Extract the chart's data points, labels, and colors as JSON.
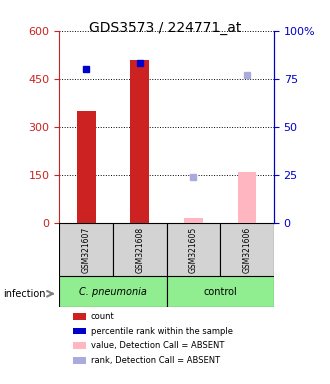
{
  "title": "GDS3573 / 224771_at",
  "samples": [
    "GSM321607",
    "GSM321608",
    "GSM321605",
    "GSM321606"
  ],
  "groups": [
    "C. pneumonia",
    "C. pneumonia",
    "control",
    "control"
  ],
  "group_labels": [
    "C. pneumonia",
    "control"
  ],
  "group_colors": [
    "#90ee90",
    "#90ee90"
  ],
  "bar_colors_present": [
    "#cc2222",
    "#cc2222"
  ],
  "bar_colors_absent": [
    "#ffb6c1",
    "#ffb6c1"
  ],
  "count_values": [
    350,
    510,
    15,
    160
  ],
  "count_absent": [
    false,
    false,
    true,
    true
  ],
  "percentile_values": [
    80,
    83,
    24,
    77
  ],
  "percentile_absent": [
    false,
    false,
    true,
    true
  ],
  "ylim_left": [
    0,
    600
  ],
  "ylim_right": [
    0,
    100
  ],
  "yticks_left": [
    0,
    150,
    300,
    450,
    600
  ],
  "yticks_right": [
    0,
    25,
    50,
    75,
    100
  ],
  "ytick_labels_left": [
    "0",
    "150",
    "300",
    "450",
    "600"
  ],
  "ytick_labels_right": [
    "0",
    "25",
    "50",
    "75",
    "100%"
  ],
  "left_color": "#cc2222",
  "right_color": "#0000cc",
  "grid_color": "#000000",
  "bg_color": "#ffffff",
  "plot_bg": "#ffffff",
  "infection_label": "infection",
  "legend_items": [
    {
      "label": "count",
      "color": "#cc2222",
      "absent": false
    },
    {
      "label": "percentile rank within the sample",
      "color": "#0000cc",
      "absent": false
    },
    {
      "label": "value, Detection Call = ABSENT",
      "color": "#ffb6c1",
      "absent": true
    },
    {
      "label": "rank, Detection Call = ABSENT",
      "color": "#aaaadd",
      "absent": true
    }
  ]
}
